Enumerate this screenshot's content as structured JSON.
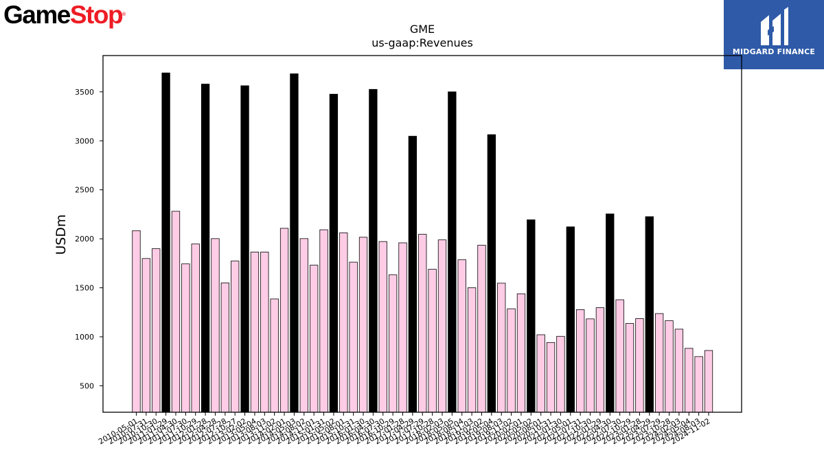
{
  "brand": {
    "logo_game": "Game",
    "logo_stop": "Stop",
    "logo_mark": "®",
    "logo_color": "#ee1c25"
  },
  "watermark": {
    "text": "MIDGARD FINANCE",
    "background": "#2e5aa8"
  },
  "chart_data": {
    "type": "bar",
    "title": "GME",
    "subtitle": "us-gaap:Revenues",
    "xlabel": "",
    "ylabel": "USDm",
    "ylim": [
      230,
      3870
    ],
    "yticks": [
      500,
      1000,
      1500,
      2000,
      2500,
      3000,
      3500
    ],
    "grid": false,
    "colors": {
      "quarter": "#ffcce6",
      "annual": "#000000",
      "edge": "#000000"
    },
    "categories": [
      "2010-05-01",
      "2010-07-31",
      "2010-10-30",
      "2011-01-29",
      "2011-04-30",
      "2011-07-30",
      "2011-10-29",
      "2012-01-28",
      "2012-04-28",
      "2012-07-28",
      "2012-10-27",
      "2013-02-02",
      "2013-05-04",
      "2013-08-03",
      "2013-11-02",
      "2014-02-01",
      "2014-05-03",
      "2014-08-02",
      "2014-11-01",
      "2015-01-31",
      "2015-05-02",
      "2015-08-01",
      "2015-10-31",
      "2016-01-30",
      "2016-04-30",
      "2016-07-30",
      "2016-10-29",
      "2017-01-28",
      "2017-04-29",
      "2017-07-29",
      "2017-10-28",
      "2018-02-03",
      "2018-05-05",
      "2018-08-04",
      "2018-11-03",
      "2019-02-02",
      "2019-05-04",
      "2019-08-03",
      "2019-11-02",
      "2020-02-01",
      "2020-05-02",
      "2020-08-01",
      "2020-10-31",
      "2021-01-30",
      "2021-05-01",
      "2021-07-31",
      "2021-10-30",
      "2022-01-29",
      "2022-04-30",
      "2022-07-30",
      "2022-10-29",
      "2023-01-28",
      "2023-04-29",
      "2023-07-29",
      "2023-10-28",
      "2024-02-03",
      "2024-05-04",
      "2024-08-03",
      "2024-11-02"
    ],
    "values": [
      2083,
      1799,
      1899,
      3693,
      2281,
      1744,
      1947,
      3579,
      2002,
      1550,
      1773,
      3562,
      1865,
      1865,
      1386,
      2107,
      3684,
      2002,
      1731,
      2092,
      3476,
      2061,
      1762,
      2016,
      3525,
      1972,
      1632,
      1959,
      3047,
      2046,
      1689,
      1989,
      3500,
      1786,
      1501,
      1935,
      3063,
      1547,
      1286,
      1439,
      2194,
      1021,
      942,
      1005,
      2122,
      1277,
      1183,
      1297,
      2254,
      1378,
      1136,
      1186,
      2226,
      1237,
      1164,
      1078,
      882,
      798,
      860
    ],
    "annual": [
      false,
      false,
      false,
      true,
      false,
      false,
      false,
      true,
      false,
      false,
      false,
      true,
      false,
      false,
      false,
      false,
      true,
      false,
      false,
      false,
      true,
      false,
      false,
      false,
      true,
      false,
      false,
      false,
      true,
      false,
      false,
      false,
      true,
      false,
      false,
      false,
      true,
      false,
      false,
      false,
      true,
      false,
      false,
      false,
      true,
      false,
      false,
      false,
      true,
      false,
      false,
      false,
      true,
      false,
      false,
      false,
      false,
      false,
      false
    ]
  }
}
